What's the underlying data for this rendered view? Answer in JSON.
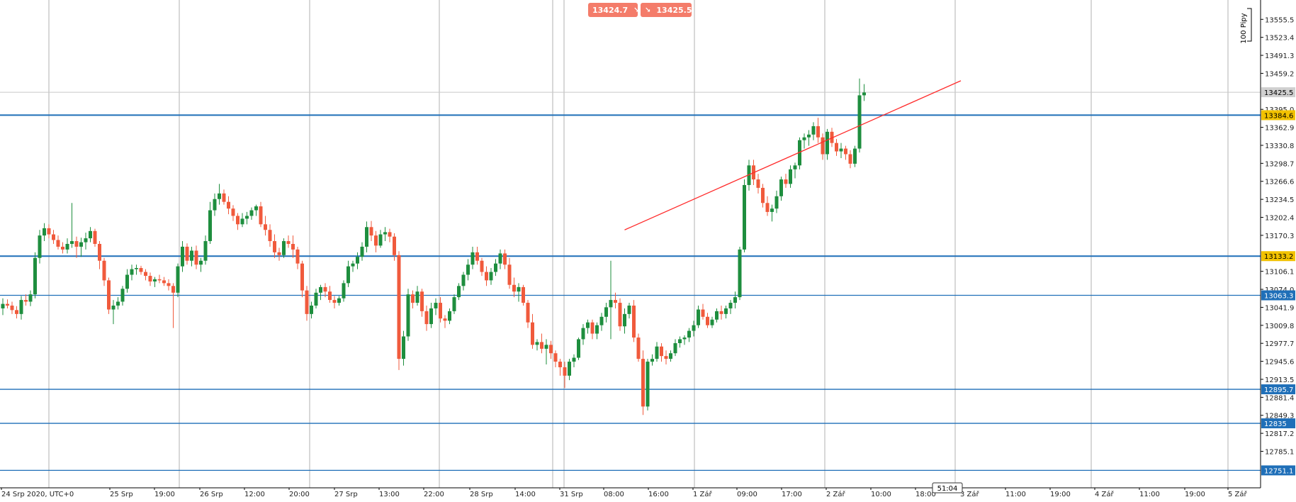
{
  "toolbar": {
    "sell_price": "13424.7",
    "buy_price": "13425.5",
    "sell_icon": "arrow-down-right-icon",
    "buy_icon": "arrow-down-right-icon"
  },
  "pips_label": "100 Pipy",
  "countdown": "51:04",
  "colors": {
    "bull": "#1e8e3e",
    "bear": "#f05a3c",
    "level_line": "#1f6fb8",
    "grid": "#b0b0b0",
    "trend": "#ff2a2a",
    "current_badge": "#d0d0d0",
    "yellow_badge": "#f2c200",
    "blue_badge": "#1f6fb8"
  },
  "chart_data": {
    "type": "candlestick",
    "title": "",
    "xlabel": "",
    "ylabel": "",
    "ylim": [
      12720,
      13590
    ],
    "y_ticks": [
      "13555.5",
      "13523.4",
      "13491.3",
      "13459.2",
      "13395.0",
      "13362.9",
      "13330.8",
      "13298.7",
      "13266.6",
      "13234.5",
      "13202.4",
      "13170.3",
      "13106.1",
      "13074.0",
      "13041.9",
      "13009.8",
      "12977.7",
      "12945.6",
      "12913.5",
      "12881.4",
      "12849.3",
      "12817.2",
      "12785.1"
    ],
    "x_ticks": [
      "24 Srp 2020, UTC+0",
      "25 Srp",
      "19:00",
      "26 Srp",
      "12:00",
      "20:00",
      "27 Srp",
      "13:00",
      "22:00",
      "28 Srp",
      "14:00",
      "31 Srp",
      "08:00",
      "16:00",
      "1 Zář",
      "09:00",
      "17:00",
      "2 Zář",
      "10:00",
      "18:00",
      "3 Zář",
      "11:00",
      "19:00",
      "4 Zář",
      "11:00",
      "19:00",
      "5 Zář"
    ],
    "current_price": "13425.5",
    "levels": [
      {
        "label": "13384.6",
        "value": 13384.6,
        "style": "yellow"
      },
      {
        "label": "13133.2",
        "value": 13133.2,
        "style": "yellow"
      },
      {
        "label": "13063.3",
        "value": 13063.3,
        "style": "blue"
      },
      {
        "label": "12895.7",
        "value": 12895.7,
        "style": "blue"
      },
      {
        "label": "12835",
        "value": 12835,
        "style": "blue"
      },
      {
        "label": "12751.1",
        "value": 12751.1,
        "style": "blue"
      }
    ],
    "trendline": [
      {
        "x": 135,
        "y": 13180
      },
      {
        "x": 208,
        "y": 13446
      }
    ],
    "candles_ohlc": [
      [
        13040,
        13058,
        13028,
        13048
      ],
      [
        13048,
        13056,
        13040,
        13045
      ],
      [
        13045,
        13052,
        13030,
        13037
      ],
      [
        13037,
        13044,
        13022,
        13030
      ],
      [
        13030,
        13062,
        13020,
        13055
      ],
      [
        13055,
        13065,
        13045,
        13052
      ],
      [
        13052,
        13072,
        13044,
        13065
      ],
      [
        13065,
        13140,
        13058,
        13130
      ],
      [
        13130,
        13180,
        13120,
        13170
      ],
      [
        13170,
        13192,
        13160,
        13183
      ],
      [
        13183,
        13190,
        13165,
        13172
      ],
      [
        13172,
        13180,
        13155,
        13162
      ],
      [
        13162,
        13170,
        13145,
        13150
      ],
      [
        13150,
        13158,
        13138,
        13145
      ],
      [
        13145,
        13165,
        13138,
        13155
      ],
      [
        13155,
        13228,
        13148,
        13160
      ],
      [
        13160,
        13168,
        13130,
        13150
      ],
      [
        13150,
        13166,
        13132,
        13158
      ],
      [
        13158,
        13175,
        13145,
        13165
      ],
      [
        13165,
        13185,
        13158,
        13178
      ],
      [
        13178,
        13182,
        13150,
        13155
      ],
      [
        13155,
        13160,
        13110,
        13125
      ],
      [
        13125,
        13130,
        13080,
        13090
      ],
      [
        13090,
        13095,
        13030,
        13038
      ],
      [
        13038,
        13055,
        13012,
        13045
      ],
      [
        13045,
        13060,
        13038,
        13052
      ],
      [
        13052,
        13080,
        13045,
        13075
      ],
      [
        13075,
        13110,
        13068,
        13100
      ],
      [
        13100,
        13118,
        13090,
        13110
      ],
      [
        13110,
        13118,
        13100,
        13112
      ],
      [
        13112,
        13116,
        13100,
        13105
      ],
      [
        13105,
        13110,
        13090,
        13098
      ],
      [
        13098,
        13104,
        13080,
        13088
      ],
      [
        13088,
        13096,
        13078,
        13092
      ],
      [
        13092,
        13100,
        13085,
        13090
      ],
      [
        13090,
        13096,
        13080,
        13085
      ],
      [
        13085,
        13092,
        13072,
        13080
      ],
      [
        13080,
        13085,
        13005,
        13068
      ],
      [
        13068,
        13120,
        13060,
        13115
      ],
      [
        13115,
        13160,
        13105,
        13150
      ],
      [
        13150,
        13156,
        13118,
        13125
      ],
      [
        13125,
        13150,
        13115,
        13143
      ],
      [
        13143,
        13152,
        13110,
        13118
      ],
      [
        13118,
        13130,
        13105,
        13125
      ],
      [
        13125,
        13170,
        13118,
        13160
      ],
      [
        13160,
        13230,
        13155,
        13215
      ],
      [
        13215,
        13245,
        13205,
        13235
      ],
      [
        13235,
        13262,
        13225,
        13245
      ],
      [
        13245,
        13252,
        13225,
        13230
      ],
      [
        13230,
        13240,
        13208,
        13218
      ],
      [
        13218,
        13224,
        13196,
        13205
      ],
      [
        13205,
        13210,
        13180,
        13190
      ],
      [
        13190,
        13210,
        13185,
        13200
      ],
      [
        13200,
        13212,
        13190,
        13205
      ],
      [
        13205,
        13220,
        13198,
        13215
      ],
      [
        13215,
        13225,
        13205,
        13222
      ],
      [
        13222,
        13230,
        13185,
        13190
      ],
      [
        13190,
        13205,
        13170,
        13180
      ],
      [
        13180,
        13190,
        13150,
        13160
      ],
      [
        13160,
        13172,
        13130,
        13140
      ],
      [
        13140,
        13148,
        13125,
        13135
      ],
      [
        13135,
        13165,
        13130,
        13160
      ],
      [
        13160,
        13170,
        13148,
        13155
      ],
      [
        13155,
        13170,
        13130,
        13145
      ],
      [
        13145,
        13150,
        13110,
        13120
      ],
      [
        13120,
        13125,
        13060,
        13072
      ],
      [
        13072,
        13080,
        13018,
        13030
      ],
      [
        13030,
        13052,
        13022,
        13045
      ],
      [
        13045,
        13075,
        13040,
        13068
      ],
      [
        13068,
        13082,
        13055,
        13078
      ],
      [
        13078,
        13085,
        13060,
        13070
      ],
      [
        13070,
        13080,
        13050,
        13055
      ],
      [
        13055,
        13062,
        13040,
        13050
      ],
      [
        13050,
        13062,
        13045,
        13058
      ],
      [
        13058,
        13090,
        13052,
        13085
      ],
      [
        13085,
        13125,
        13078,
        13115
      ],
      [
        13115,
        13125,
        13105,
        13120
      ],
      [
        13120,
        13140,
        13110,
        13132
      ],
      [
        13132,
        13158,
        13125,
        13150
      ],
      [
        13150,
        13195,
        13140,
        13185
      ],
      [
        13185,
        13196,
        13160,
        13170
      ],
      [
        13170,
        13178,
        13140,
        13152
      ],
      [
        13152,
        13180,
        13148,
        13172
      ],
      [
        13172,
        13185,
        13160,
        13176
      ],
      [
        13176,
        13182,
        13158,
        13168
      ],
      [
        13168,
        13174,
        13125,
        13135
      ],
      [
        13135,
        13142,
        12930,
        12950
      ],
      [
        12950,
        13000,
        12938,
        12990
      ],
      [
        12990,
        13075,
        12982,
        13065
      ],
      [
        13065,
        13072,
        13040,
        13050
      ],
      [
        13050,
        13080,
        13045,
        13070
      ],
      [
        13070,
        13075,
        13025,
        13035
      ],
      [
        13035,
        13045,
        13000,
        13012
      ],
      [
        13012,
        13050,
        13005,
        13040
      ],
      [
        13040,
        13058,
        13028,
        13050
      ],
      [
        13050,
        13060,
        13015,
        13022
      ],
      [
        13022,
        13028,
        13005,
        13018
      ],
      [
        13018,
        13040,
        13012,
        13035
      ],
      [
        13035,
        13065,
        13030,
        13060
      ],
      [
        13060,
        13085,
        13055,
        13080
      ],
      [
        13080,
        13105,
        13072,
        13100
      ],
      [
        13100,
        13128,
        13090,
        13118
      ],
      [
        13118,
        13150,
        13110,
        13140
      ],
      [
        13140,
        13150,
        13118,
        13125
      ],
      [
        13125,
        13130,
        13098,
        13105
      ],
      [
        13105,
        13115,
        13080,
        13090
      ],
      [
        13090,
        13112,
        13082,
        13105
      ],
      [
        13105,
        13128,
        13098,
        13120
      ],
      [
        13120,
        13145,
        13110,
        13138
      ],
      [
        13138,
        13145,
        13110,
        13118
      ],
      [
        13118,
        13130,
        13075,
        13082
      ],
      [
        13082,
        13095,
        13060,
        13070
      ],
      [
        13070,
        13085,
        13052,
        13078
      ],
      [
        13078,
        13082,
        13045,
        13050
      ],
      [
        13050,
        13055,
        13005,
        13015
      ],
      [
        13015,
        13030,
        12968,
        12975
      ],
      [
        12975,
        12985,
        12965,
        12980
      ],
      [
        12980,
        12995,
        12960,
        12968
      ],
      [
        12968,
        12985,
        12940,
        12975
      ],
      [
        12975,
        12982,
        12950,
        12960
      ],
      [
        12960,
        12965,
        12935,
        12945
      ],
      [
        12945,
        12950,
        12920,
        12935
      ],
      [
        12935,
        12945,
        12898,
        12920
      ],
      [
        12920,
        12950,
        12912,
        12945
      ],
      [
        12945,
        12958,
        12935,
        12952
      ],
      [
        12952,
        12988,
        12948,
        12985
      ],
      [
        12985,
        13012,
        12975,
        13005
      ],
      [
        13005,
        13020,
        12995,
        13015
      ],
      [
        13015,
        13020,
        12985,
        12995
      ],
      [
        12995,
        13015,
        12985,
        13010
      ],
      [
        13010,
        13032,
        13000,
        13025
      ],
      [
        13025,
        13050,
        13015,
        13042
      ],
      [
        13042,
        13125,
        12985,
        13055
      ],
      [
        13055,
        13068,
        13040,
        13050
      ],
      [
        13050,
        13058,
        13000,
        13008
      ],
      [
        13008,
        13040,
        12995,
        13030
      ],
      [
        13030,
        13050,
        13022,
        13045
      ],
      [
        13045,
        13055,
        12980,
        12988
      ],
      [
        12988,
        12995,
        12945,
        12950
      ],
      [
        12950,
        12965,
        12850,
        12865
      ],
      [
        12865,
        12950,
        12858,
        12945
      ],
      [
        12945,
        12958,
        12938,
        12950
      ],
      [
        12950,
        12980,
        12945,
        12972
      ],
      [
        12972,
        12978,
        12945,
        12955
      ],
      [
        12955,
        12965,
        12940,
        12950
      ],
      [
        12950,
        12965,
        12945,
        12960
      ],
      [
        12960,
        12985,
        12955,
        12978
      ],
      [
        12978,
        12990,
        12970,
        12985
      ],
      [
        12985,
        12992,
        12975,
        12988
      ],
      [
        12988,
        13005,
        12980,
        13000
      ],
      [
        13000,
        13018,
        12990,
        13010
      ],
      [
        13010,
        13045,
        13005,
        13038
      ],
      [
        13038,
        13048,
        13020,
        13025
      ],
      [
        13025,
        13032,
        13005,
        13010
      ],
      [
        13010,
        13025,
        13005,
        13020
      ],
      [
        13020,
        13040,
        13015,
        13035
      ],
      [
        13035,
        13045,
        13020,
        13030
      ],
      [
        13030,
        13045,
        13022,
        13040
      ],
      [
        13040,
        13055,
        13030,
        13050
      ],
      [
        13050,
        13070,
        13040,
        13060
      ],
      [
        13060,
        13150,
        13055,
        13145
      ],
      [
        13145,
        13270,
        13140,
        13260
      ],
      [
        13260,
        13305,
        13250,
        13295
      ],
      [
        13295,
        13305,
        13260,
        13270
      ],
      [
        13270,
        13280,
        13245,
        13255
      ],
      [
        13255,
        13262,
        13220,
        13228
      ],
      [
        13228,
        13240,
        13205,
        13212
      ],
      [
        13212,
        13225,
        13195,
        13218
      ],
      [
        13218,
        13250,
        13210,
        13240
      ],
      [
        13240,
        13275,
        13232,
        13270
      ],
      [
        13270,
        13280,
        13255,
        13262
      ],
      [
        13262,
        13295,
        13255,
        13288
      ],
      [
        13288,
        13300,
        13272,
        13295
      ],
      [
        13295,
        13345,
        13288,
        13340
      ],
      [
        13340,
        13352,
        13325,
        13345
      ],
      [
        13345,
        13358,
        13330,
        13350
      ],
      [
        13350,
        13372,
        13340,
        13365
      ],
      [
        13365,
        13380,
        13335,
        13345
      ],
      [
        13345,
        13352,
        13305,
        13315
      ],
      [
        13315,
        13360,
        13305,
        13355
      ],
      [
        13355,
        13362,
        13328,
        13335
      ],
      [
        13335,
        13342,
        13312,
        13320
      ],
      [
        13320,
        13335,
        13308,
        13325
      ],
      [
        13325,
        13330,
        13305,
        13315
      ],
      [
        13315,
        13322,
        13290,
        13298
      ],
      [
        13298,
        13330,
        13292,
        13325
      ],
      [
        13325,
        13450,
        13318,
        13420
      ],
      [
        13420,
        13440,
        13410,
        13425
      ]
    ]
  }
}
